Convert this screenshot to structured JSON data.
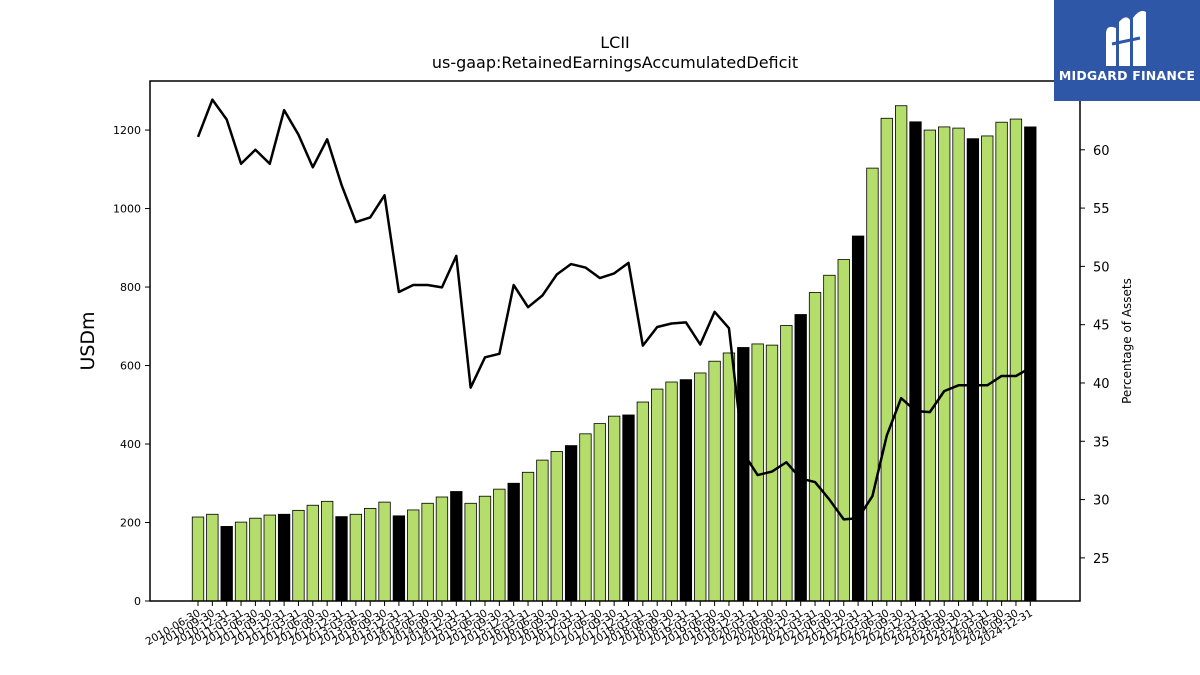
{
  "brand": {
    "name": "MIDGARD FINANCE",
    "bg_color": "#2e57a8",
    "icon": "midgard-logo-icon"
  },
  "chart_data": {
    "type": "bar",
    "title": "LCII",
    "subtitle": "us-gaap:RetainedEarningsAccumulatedDeficit",
    "ylabel": "USDm",
    "y2label": "Percentage of Assets",
    "ylim": [
      0,
      1325
    ],
    "y2lim": [
      21.3,
      65.9
    ],
    "yticks": [
      0,
      200,
      400,
      600,
      800,
      1000,
      1200
    ],
    "y2ticks": [
      25,
      30,
      35,
      40,
      45,
      50,
      55,
      60
    ],
    "colors": {
      "bar_regular": "#b5dd6b",
      "bar_yearend": "#000000",
      "line": "#000000"
    },
    "categories": [
      "2010-06-30",
      "2010-09-30",
      "2010-12-31",
      "2011-03-31",
      "2011-06-30",
      "2011-09-30",
      "2011-12-31",
      "2012-03-31",
      "2012-06-30",
      "2012-09-30",
      "2012-12-31",
      "2013-03-31",
      "2013-06-30",
      "2013-09-30",
      "2013-12-31",
      "2014-03-31",
      "2014-06-30",
      "2014-09-30",
      "2014-12-31",
      "2015-03-31",
      "2015-06-30",
      "2015-09-30",
      "2015-12-31",
      "2016-03-31",
      "2016-06-30",
      "2016-09-30",
      "2016-12-31",
      "2017-03-31",
      "2017-06-30",
      "2017-09-30",
      "2017-12-31",
      "2018-03-31",
      "2018-06-30",
      "2018-09-30",
      "2018-12-31",
      "2019-03-31",
      "2019-06-30",
      "2019-09-30",
      "2019-12-31",
      "2020-03-31",
      "2020-06-30",
      "2020-09-30",
      "2020-12-31",
      "2021-03-31",
      "2021-06-30",
      "2021-09-30",
      "2021-12-31",
      "2022-03-31",
      "2022-06-30",
      "2022-09-30",
      "2022-12-31",
      "2023-03-31",
      "2023-06-30",
      "2023-09-30",
      "2023-12-31",
      "2024-03-31",
      "2024-06-30",
      "2024-09-30",
      "2024-12-31"
    ],
    "xtick_labels": [
      "2010-06-30",
      "2010-09-30",
      "2010-12-31",
      "2011-03-31",
      "2011-06-30",
      "2011-09-30",
      "2011-12-31",
      "2012-03-31",
      "2012-06-30",
      "2012-09-30",
      "2012-12-31",
      "2013-03-31",
      "2013-06-30",
      "2013-09-30",
      "2013-12-31",
      "2014-03-31",
      "2014-06-30",
      "2014-09-30",
      "2014-12-31",
      "2015-03-31",
      "2015-06-30",
      "2015-09-30",
      "2015-12-31",
      "2016-03-31",
      "2016-06-30",
      "2016-09-30",
      "2016-12-31",
      "2017-03-31",
      "2017-06-30",
      "2017-09-30",
      "2017-12-31",
      "2018-03-31",
      "2018-06-30",
      "2018-09-30",
      "2018-12-31",
      "2019-03-31",
      "2019-06-30",
      "2019-09-30",
      "2019-12-31",
      "2020-03-31",
      "2020-06-30",
      "2020-09-30",
      "2020-12-31",
      "2021-03-31",
      "2021-06-30",
      "2021-09-30",
      "2021-12-31",
      "2022-03-31",
      "2022-06-30",
      "2022-09-30",
      "2022-12-31",
      "2023-03-31",
      "2023-06-30",
      "2023-09-30",
      "2023-12-31",
      "2024-03-31",
      "2024-06-30",
      "2024-09-30",
      "2024-12-31"
    ],
    "series": [
      {
        "axis": "left",
        "kind": "bar",
        "values": [
          214,
          221,
          190,
          201,
          211,
          219,
          221,
          231,
          244,
          254,
          215,
          221,
          236,
          252,
          217,
          232,
          249,
          265,
          279,
          249,
          267,
          285,
          300,
          328,
          359,
          381,
          396,
          426,
          452,
          471,
          474,
          507,
          540,
          558,
          564,
          581,
          611,
          632,
          646,
          655,
          652,
          702,
          730,
          786,
          830,
          870,
          930,
          1103,
          1230,
          1262,
          1221,
          1200,
          1208,
          1205,
          1178,
          1185,
          1220,
          1228,
          1208
        ]
      },
      {
        "axis": "right",
        "kind": "line",
        "values": [
          61.1,
          64.3,
          62.6,
          58.8,
          60.0,
          58.8,
          63.4,
          61.3,
          58.5,
          60.9,
          57.0,
          53.8,
          54.2,
          56.1,
          47.8,
          48.4,
          48.4,
          48.2,
          50.9,
          39.6,
          42.2,
          42.5,
          48.4,
          46.5,
          47.5,
          49.3,
          50.2,
          49.9,
          49.0,
          49.4,
          50.3,
          43.2,
          44.8,
          45.1,
          45.2,
          43.3,
          46.1,
          44.7,
          34.0,
          32.1,
          32.4,
          33.2,
          31.8,
          31.5,
          30.0,
          28.3,
          28.4,
          30.3,
          35.5,
          38.7,
          37.6,
          37.5,
          39.3,
          39.8,
          39.8,
          39.8,
          40.6,
          40.6,
          41.3
        ]
      }
    ],
    "grid": false,
    "legend": "none"
  }
}
